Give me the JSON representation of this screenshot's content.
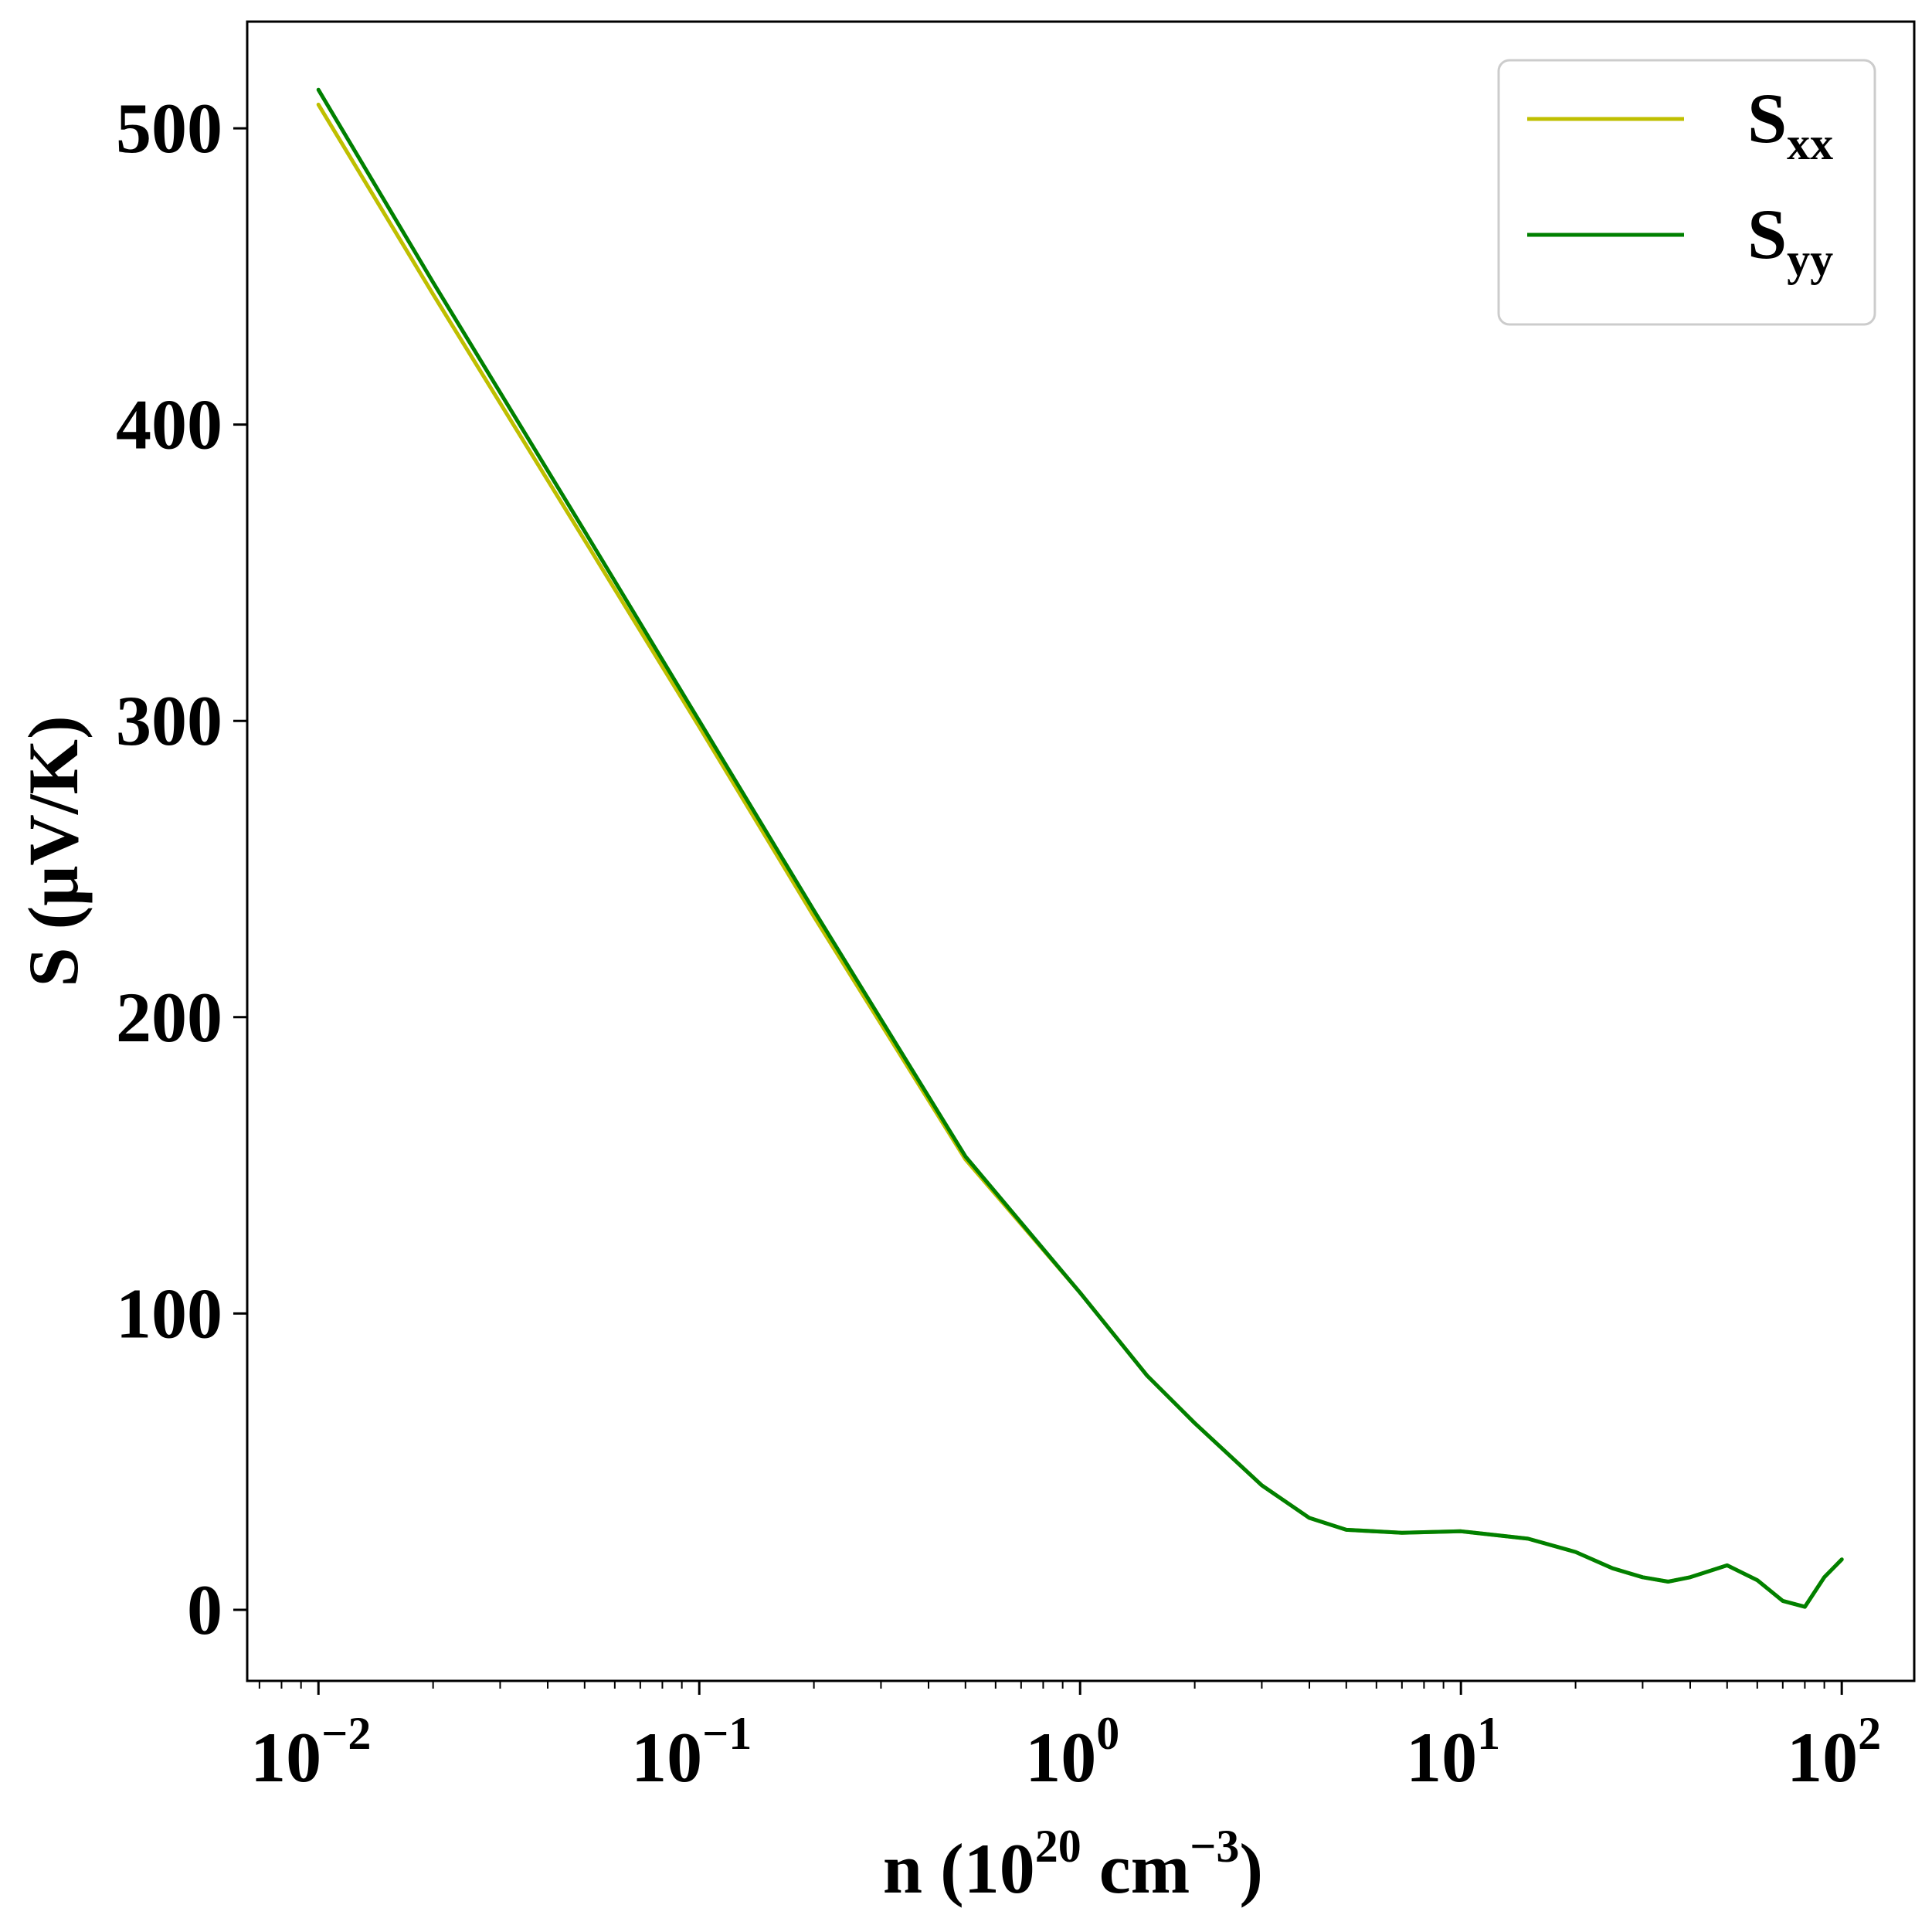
{
  "chart_data": {
    "type": "line",
    "xscale": "log",
    "xlim": [
      0.0065,
      155
    ],
    "ylim": [
      -24,
      536
    ],
    "x_ticks": [
      {
        "value": 0.01,
        "base": "10",
        "exp": "−2"
      },
      {
        "value": 0.1,
        "base": "10",
        "exp": "−1"
      },
      {
        "value": 1,
        "base": "10",
        "exp": "0"
      },
      {
        "value": 10,
        "base": "10",
        "exp": "1"
      },
      {
        "value": 100,
        "base": "10",
        "exp": "2"
      }
    ],
    "y_ticks": [
      0,
      100,
      200,
      300,
      400,
      500
    ],
    "xlabel": {
      "prefix": "n (10",
      "sup1": "20",
      "mid": " cm",
      "sup2": "−3",
      "suffix": ")"
    },
    "ylabel": "S (μV/K)",
    "grid": false,
    "legend": "top-right",
    "series": [
      {
        "name": {
          "base": "S",
          "sub": "xx"
        },
        "color": "#bfbf00",
        "x": [
          0.01,
          0.02,
          0.05,
          0.1,
          0.2,
          0.5,
          1,
          1.5,
          2,
          3,
          4,
          5,
          7,
          10,
          15,
          20,
          25,
          30,
          35,
          40,
          50,
          60,
          70,
          80,
          90,
          100
        ],
        "y": [
          508,
          444,
          361,
          298,
          234,
          152,
          107,
          79,
          63,
          42,
          31,
          27,
          26,
          26.5,
          24,
          19.5,
          14,
          11,
          9.5,
          11,
          15,
          10,
          3,
          1,
          11,
          17
        ]
      },
      {
        "name": {
          "base": "S",
          "sub": "yy"
        },
        "color": "#008000",
        "x": [
          0.01,
          0.02,
          0.05,
          0.1,
          0.2,
          0.5,
          1,
          1.5,
          2,
          3,
          4,
          5,
          7,
          10,
          15,
          20,
          25,
          30,
          35,
          40,
          50,
          60,
          70,
          80,
          90,
          100
        ],
        "y": [
          513,
          448,
          364,
          300,
          236,
          153,
          107,
          79,
          63,
          42,
          31,
          27,
          26,
          26.5,
          24,
          19.5,
          14,
          11,
          9.5,
          11,
          15,
          10,
          3,
          1,
          11,
          17
        ]
      }
    ]
  }
}
